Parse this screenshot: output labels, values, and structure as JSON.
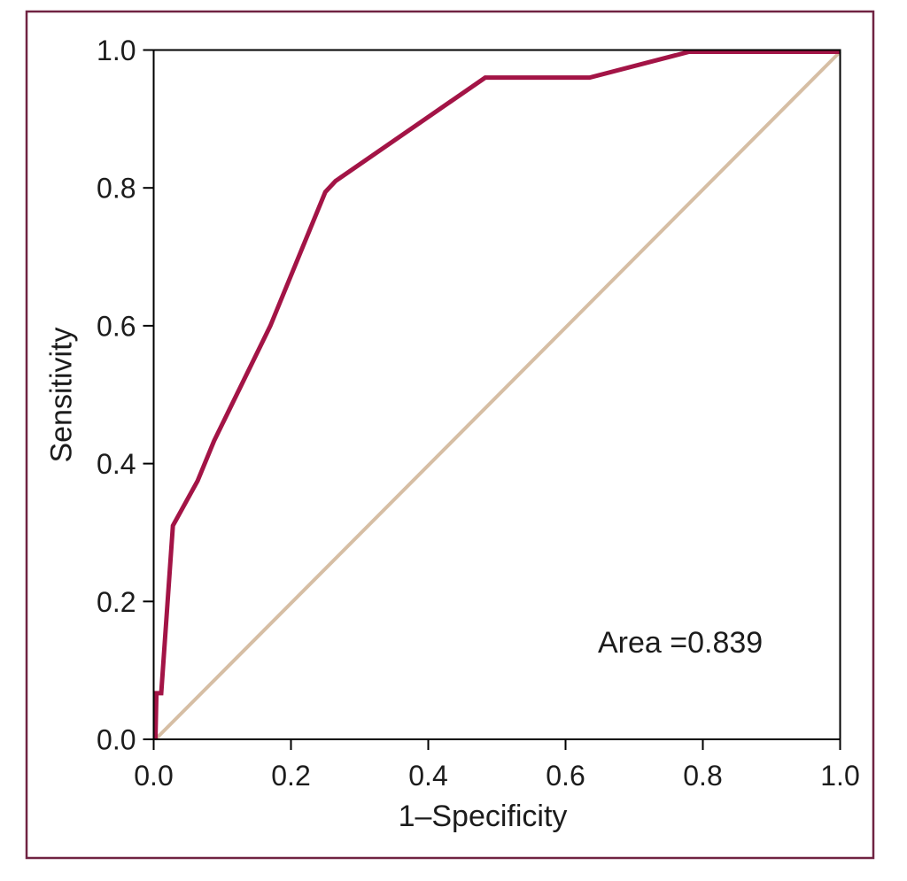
{
  "figure": {
    "border_color": "#702342",
    "background_color": "#ffffff",
    "frame_color": "#000000",
    "text_color": "#1c1c1c"
  },
  "chart_data": {
    "type": "line",
    "title": "",
    "xlabel": "1–Specificity",
    "ylabel": "Sensitivity",
    "xlim": [
      0,
      1
    ],
    "ylim": [
      0,
      1
    ],
    "grid": false,
    "legend": false,
    "x_ticks": [
      "0.0",
      "0.2",
      "0.4",
      "0.6",
      "0.8",
      "1.0"
    ],
    "x_tick_values": [
      0,
      0.2,
      0.4,
      0.6,
      0.8,
      1.0
    ],
    "y_ticks": [
      "0.0",
      "0.2",
      "0.4",
      "0.6",
      "0.8",
      "1.0"
    ],
    "y_tick_values": [
      0,
      0.2,
      0.4,
      0.6,
      0.8,
      1.0
    ],
    "annotation": {
      "text": "Area =0.839",
      "x": 0.65,
      "y": 0.14
    },
    "series": [
      {
        "name": "reference-diagonal",
        "color": "#D6BEA4",
        "width": 4,
        "points": [
          [
            0,
            0
          ],
          [
            1,
            1
          ]
        ]
      },
      {
        "name": "roc-curve",
        "color": "#A31446",
        "width": 5,
        "points": [
          [
            0,
            0
          ],
          [
            0.004,
            0.067
          ],
          [
            0.011,
            0.067
          ],
          [
            0.028,
            0.31
          ],
          [
            0.064,
            0.375
          ],
          [
            0.088,
            0.433
          ],
          [
            0.17,
            0.6
          ],
          [
            0.25,
            0.794
          ],
          [
            0.265,
            0.81
          ],
          [
            0.483,
            0.96
          ],
          [
            0.635,
            0.96
          ],
          [
            0.78,
            1.0
          ],
          [
            1.0,
            1.0
          ]
        ]
      }
    ]
  }
}
